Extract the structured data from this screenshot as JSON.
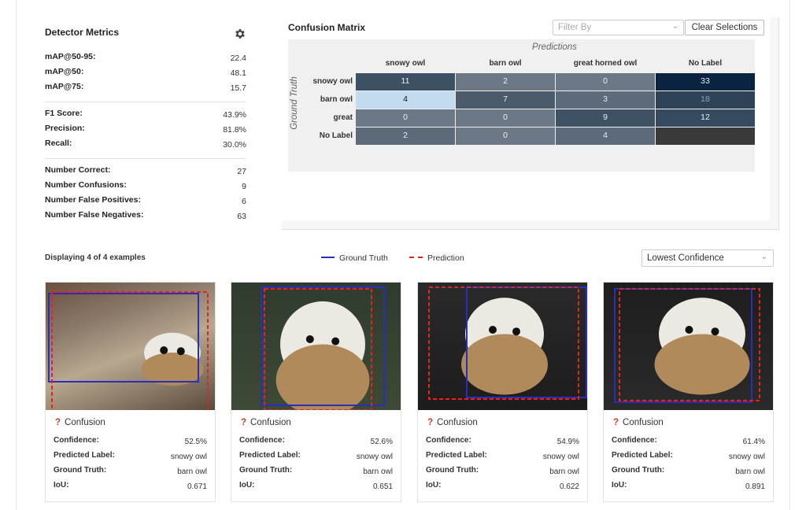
{
  "metrics": {
    "title": "Detector Metrics",
    "settings_icon": "gear-icon",
    "groups": [
      [
        {
          "label": "mAP@50-95:",
          "value": "22.4"
        },
        {
          "label": "mAP@50:",
          "value": "48.1"
        },
        {
          "label": "mAP@75:",
          "value": "15.7"
        }
      ],
      [
        {
          "label": "F1 Score:",
          "value": "43.9%"
        },
        {
          "label": "Precision:",
          "value": "81.8%"
        },
        {
          "label": "Recall:",
          "value": "30.0%"
        }
      ],
      [
        {
          "label": "Number Correct:",
          "value": "27"
        },
        {
          "label": "Number Confusions:",
          "value": "9"
        },
        {
          "label": "Number False Positives:",
          "value": "6"
        },
        {
          "label": "Number False Negatives:",
          "value": "63"
        }
      ]
    ]
  },
  "confusion": {
    "title": "Confusion Matrix",
    "filter_placeholder": "Filter By",
    "clear_label": "Clear Selections",
    "predictions_label": "Predictions",
    "ground_truth_label": "Ground Truth",
    "columns": [
      "snowy owl",
      "barn owl",
      "great horned owl",
      "No Label"
    ],
    "rows": [
      {
        "label": "snowy owl",
        "cells": [
          "11",
          "2",
          "0",
          "33"
        ]
      },
      {
        "label": "barn owl",
        "cells": [
          "4",
          "7",
          "3",
          "18"
        ]
      },
      {
        "label": "great",
        "cells": [
          "0",
          "0",
          "9",
          "12"
        ]
      },
      {
        "label": "No Label",
        "cells": [
          "2",
          "0",
          "4",
          ""
        ]
      }
    ],
    "cell_colors": [
      [
        "#3e5064",
        "#6c7886",
        "#6c7886",
        "#0a2340"
      ],
      [
        "#c2dbee",
        "#4b5b6c",
        "#5c6a79",
        "#2f4358"
      ],
      [
        "#6c7886",
        "#6c7886",
        "#3f5165",
        "#354a5f"
      ],
      [
        "#5c6a79",
        "#6c7886",
        "#5c6a79",
        "#3a3a3a"
      ]
    ]
  },
  "examples": {
    "displaying": "Displaying 4 of 4 examples",
    "legend_gt": "Ground Truth",
    "legend_pred": "Prediction",
    "gt_color": "#2a2fb8",
    "pred_color": "#e0261f",
    "sort_value": "Lowest Confidence",
    "row_labels": [
      "Confidence:",
      "Predicted Label:",
      "Ground Truth:",
      "IoU:"
    ],
    "cards": [
      {
        "status": "Confusion",
        "confidence": "52.5%",
        "predicted": "snowy owl",
        "ground_truth": "barn owl",
        "iou": "0.671"
      },
      {
        "status": "Confusion",
        "confidence": "52.6%",
        "predicted": "snowy owl",
        "ground_truth": "barn owl",
        "iou": "0.651"
      },
      {
        "status": "Confusion",
        "confidence": "54.9%",
        "predicted": "snowy owl",
        "ground_truth": "barn owl",
        "iou": "0.622"
      },
      {
        "status": "Confusion",
        "confidence": "61.4%",
        "predicted": "snowy owl",
        "ground_truth": "barn owl",
        "iou": "0.891"
      }
    ]
  }
}
